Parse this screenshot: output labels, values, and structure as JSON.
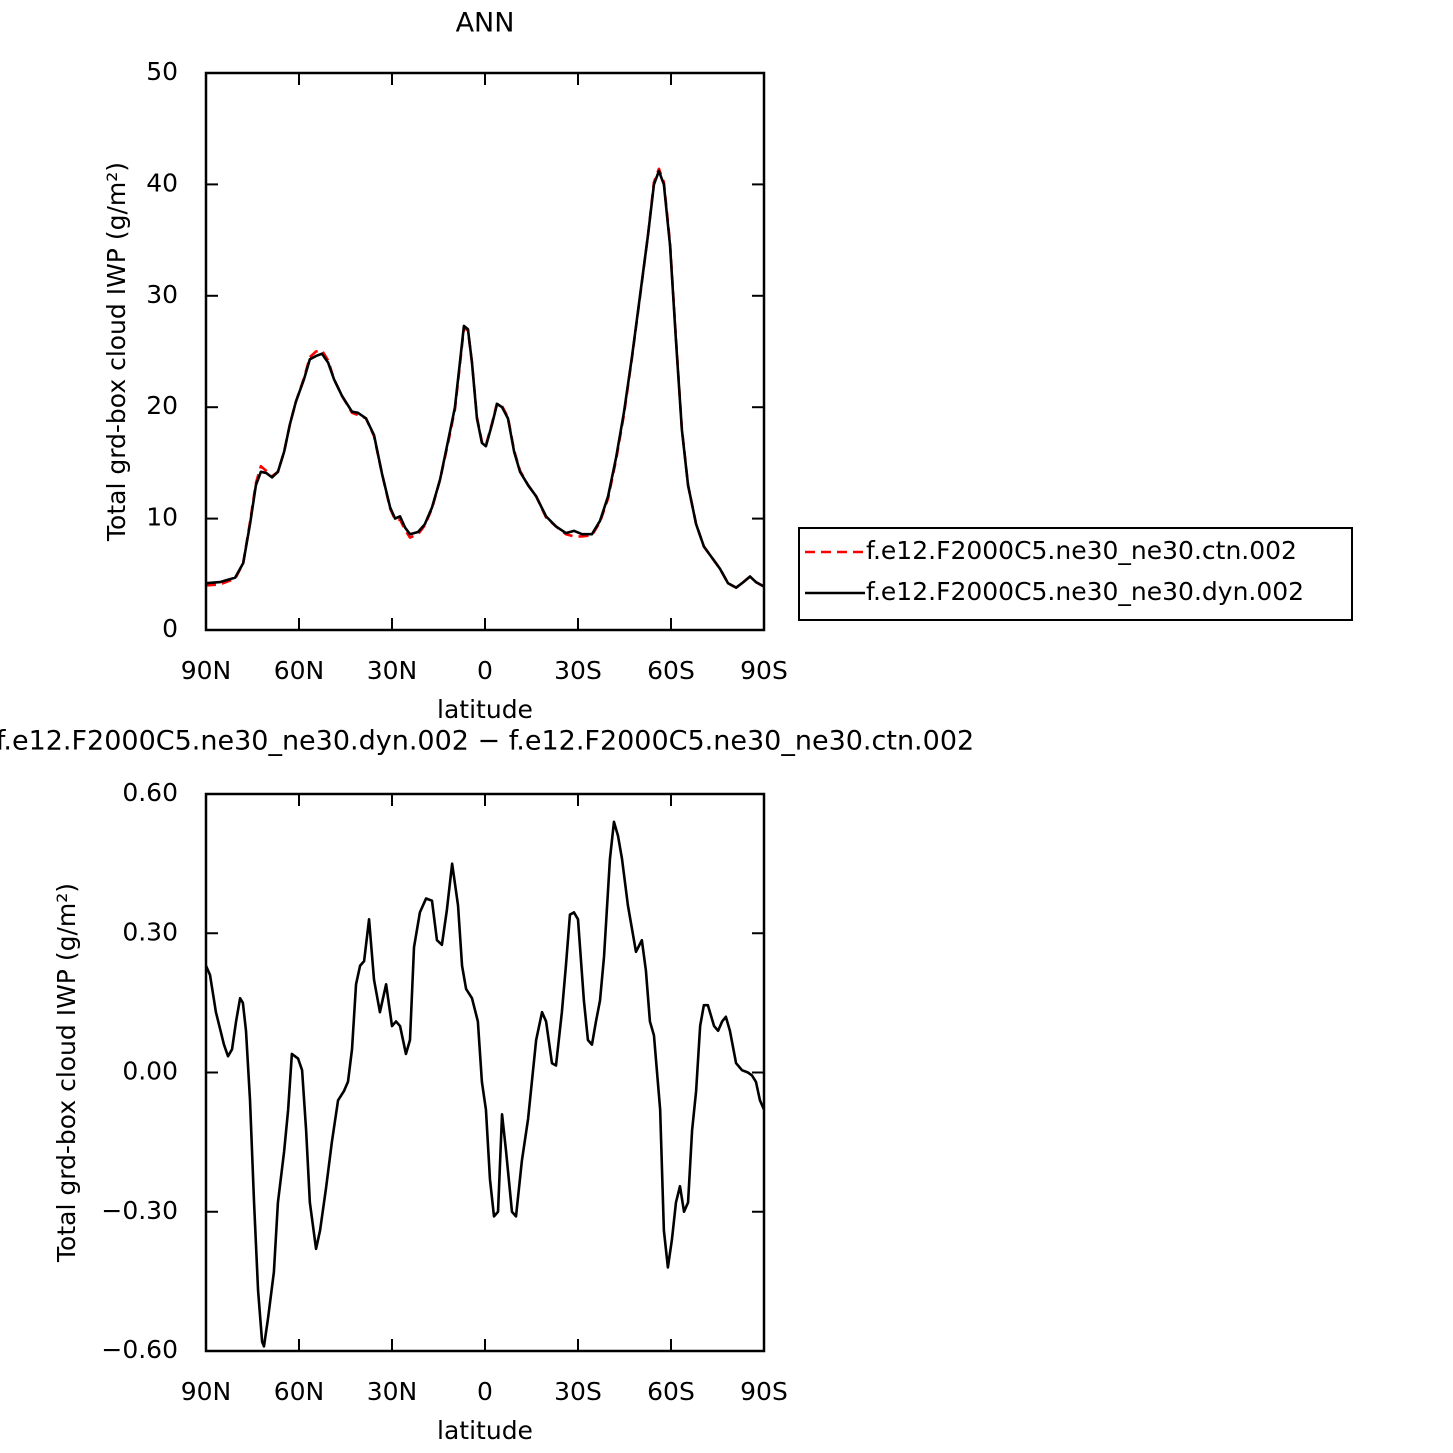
{
  "chart_data": [
    {
      "type": "line",
      "title": "ANN",
      "x_label": "latitude",
      "y_label": "Total grd-box cloud IWP (g/m²)",
      "legend": "right",
      "x": [
        90,
        85.5,
        80.6,
        78,
        75.8,
        73.9,
        72.3,
        70.6,
        68.7,
        66.8,
        64.8,
        62.9,
        61,
        58.4,
        56.5,
        54.5,
        52.6,
        50.6,
        48.7,
        46.1,
        42.9,
        41,
        38.4,
        35.8,
        33.2,
        30.6,
        29,
        27.4,
        25.8,
        24.2,
        21.6,
        19.4,
        17.1,
        14.5,
        11.9,
        9.7,
        8.1,
        6.8,
        5.5,
        4.2,
        2.6,
        1,
        -0.3,
        -2.3,
        -3.9,
        -5.5,
        -7.4,
        -9.4,
        -11.3,
        -13.9,
        -16.5,
        -19.7,
        -22.9,
        -26.1,
        -28.7,
        -31.3,
        -34.5,
        -37.1,
        -39.7,
        -42.3,
        -44.8,
        -47.4,
        -50,
        -52.6,
        -54.5,
        -56.1,
        -57.7,
        -59.7,
        -61.6,
        -63.5,
        -65.5,
        -68.1,
        -70.6,
        -73.2,
        -75.8,
        -78.4,
        -81,
        -82.9,
        -85.5,
        -87.4,
        -90
      ],
      "series": [
        {
          "name": "f.e12.F2000C5.ne30_ne30.ctn.002",
          "color": "#ff0000",
          "line_style": "dashed",
          "values": [
            4.0,
            4.1,
            4.6,
            6,
            9.7,
            13.2,
            14.7,
            14.3,
            13.8,
            14.2,
            16,
            18.5,
            20.5,
            22.6,
            24.5,
            25,
            25.1,
            24.2,
            22.5,
            21,
            19.5,
            19.3,
            19,
            17.4,
            14,
            10.9,
            9.9,
            9.9,
            9,
            8.3,
            8.6,
            9.4,
            10.9,
            13.5,
            16.8,
            19.8,
            23.8,
            27.1,
            26.9,
            24,
            19.1,
            16.9,
            16.6,
            18.6,
            20.4,
            20.1,
            19.1,
            16.1,
            14.3,
            13,
            12,
            10.1,
            9.3,
            8.6,
            8.4,
            8.4,
            8.5,
            9.7,
            11.8,
            15.3,
            19.3,
            24.4,
            29.9,
            35.5,
            40.2,
            41.4,
            40.2,
            34.7,
            26.2,
            18.1,
            13,
            9.5,
            7.5,
            6.5,
            5.5,
            4.2,
            3.8,
            4.2,
            4.8,
            4.3,
            3.9
          ]
        },
        {
          "name": "f.e12.F2000C5.ne30_ne30.dyn.002",
          "color": "#000000",
          "line_style": "solid",
          "values": [
            4.2,
            4.3,
            4.7,
            6,
            9.5,
            13,
            14.2,
            14.1,
            13.7,
            14.2,
            16,
            18.5,
            20.5,
            22.5,
            24.3,
            24.6,
            24.8,
            24,
            22.5,
            21,
            19.6,
            19.5,
            19,
            17.5,
            14,
            11,
            10,
            10.2,
            9.2,
            8.6,
            8.8,
            9.5,
            11,
            13.5,
            17,
            20,
            24,
            27.3,
            27,
            24,
            19,
            16.8,
            16.5,
            18.5,
            20.3,
            20,
            19,
            16,
            14.2,
            13,
            12,
            10.2,
            9.3,
            8.7,
            8.9,
            8.6,
            8.6,
            9.8,
            12,
            15.5,
            19.5,
            24.5,
            30,
            35.5,
            40,
            41.2,
            40,
            34.5,
            26,
            18,
            13,
            9.5,
            7.5,
            6.5,
            5.5,
            4.2,
            3.8,
            4.2,
            4.8,
            4.3,
            3.9
          ]
        }
      ],
      "xlim": [
        90,
        -90
      ],
      "xticks": [
        {
          "value": 90,
          "label": "90N"
        },
        {
          "value": 60,
          "label": "60N"
        },
        {
          "value": 30,
          "label": "30N"
        },
        0,
        {
          "value": -30,
          "label": "30S"
        },
        {
          "value": -60,
          "label": "60S"
        },
        {
          "value": -90,
          "label": "90S"
        }
      ],
      "ylim": [
        0,
        50
      ],
      "yticks": [
        0,
        10,
        20,
        30,
        40,
        50
      ]
    },
    {
      "type": "line",
      "title": "f.e12.F2000C5.ne30_ne30.dyn.002 − f.e12.F2000C5.ne30_ne30.ctn.002",
      "x_label": "latitude",
      "y_label": "Total grd-box cloud IWP (g/m²)",
      "x": [
        90,
        88.7,
        86.8,
        84.2,
        82.9,
        81.6,
        80.3,
        79,
        78.1,
        77.1,
        75.8,
        74.5,
        73.2,
        71.9,
        71.3,
        70,
        68.1,
        66.8,
        64.8,
        63.5,
        62.3,
        60.3,
        59,
        57.7,
        56.5,
        54.5,
        53.2,
        51.3,
        49.4,
        47.4,
        45.5,
        44.2,
        42.9,
        41.6,
        40.3,
        39,
        37.4,
        35.8,
        33.9,
        31.9,
        30,
        28.7,
        27.4,
        25.5,
        24.2,
        22.9,
        21,
        19,
        17.1,
        15.5,
        13.9,
        12.3,
        10.6,
        8.7,
        7.4,
        6.1,
        4.2,
        2.3,
        1,
        -0.3,
        -1.6,
        -2.9,
        -4.2,
        -5.5,
        -6.8,
        -8.7,
        -10,
        -11.9,
        -13.9,
        -16.5,
        -18.4,
        -19.7,
        -21.6,
        -22.9,
        -24.8,
        -26.1,
        -27.4,
        -28.7,
        -30,
        -31.9,
        -33.2,
        -34.5,
        -35.8,
        -37.1,
        -38.4,
        -40.3,
        -41.6,
        -42.9,
        -44.2,
        -46.1,
        -48.7,
        -50.6,
        -51.9,
        -53.2,
        -54.5,
        -56.5,
        -57.7,
        -59,
        -60.3,
        -61.6,
        -62.9,
        -64.2,
        -65.5,
        -66.8,
        -68.1,
        -69.4,
        -70.6,
        -71.9,
        -73.9,
        -75.2,
        -76.5,
        -77.7,
        -79,
        -81,
        -82.9,
        -84.8,
        -86.1,
        -87.4,
        -88.7,
        -90
      ],
      "series": [
        {
          "color": "#000000",
          "line_style": "solid",
          "values": [
            0.23,
            0.21,
            0.13,
            0.06,
            0.035,
            0.05,
            0.11,
            0.16,
            0.15,
            0.09,
            -0.06,
            -0.28,
            -0.47,
            -0.58,
            -0.59,
            -0.53,
            -0.43,
            -0.28,
            -0.17,
            -0.08,
            0.04,
            0.03,
            0.005,
            -0.125,
            -0.28,
            -0.38,
            -0.34,
            -0.25,
            -0.15,
            -0.06,
            -0.04,
            -0.02,
            0.05,
            0.19,
            0.23,
            0.24,
            0.33,
            0.2,
            0.13,
            0.19,
            0.1,
            0.11,
            0.1,
            0.04,
            0.07,
            0.27,
            0.345,
            0.375,
            0.37,
            0.285,
            0.275,
            0.35,
            0.45,
            0.36,
            0.23,
            0.18,
            0.16,
            0.11,
            -0.02,
            -0.08,
            -0.23,
            -0.31,
            -0.3,
            -0.09,
            -0.17,
            -0.3,
            -0.31,
            -0.19,
            -0.1,
            0.07,
            0.13,
            0.11,
            0.02,
            0.015,
            0.13,
            0.23,
            0.34,
            0.345,
            0.33,
            0.155,
            0.07,
            0.06,
            0.11,
            0.155,
            0.25,
            0.46,
            0.54,
            0.51,
            0.46,
            0.36,
            0.26,
            0.285,
            0.22,
            0.11,
            0.08,
            -0.08,
            -0.34,
            -0.42,
            -0.36,
            -0.28,
            -0.245,
            -0.3,
            -0.28,
            -0.125,
            -0.04,
            0.1,
            0.145,
            0.145,
            0.1,
            0.09,
            0.11,
            0.12,
            0.09,
            0.02,
            0.005,
            0,
            -0.006,
            -0.02,
            -0.06,
            -0.08
          ]
        }
      ],
      "xlim": [
        90,
        -90
      ],
      "xticks": [
        {
          "value": 90,
          "label": "90N"
        },
        {
          "value": 60,
          "label": "60N"
        },
        {
          "value": 30,
          "label": "30N"
        },
        0,
        {
          "value": -30,
          "label": "30S"
        },
        {
          "value": -60,
          "label": "60S"
        },
        {
          "value": -90,
          "label": "90S"
        }
      ],
      "ylim": [
        -0.6,
        0.6
      ],
      "yticks": [
        {
          "value": -0.6,
          "label": "−0.60"
        },
        {
          "value": -0.3,
          "label": "−0.30"
        },
        {
          "value": 0,
          "label": "0.00"
        },
        {
          "value": 0.3,
          "label": "0.30"
        },
        {
          "value": 0.6,
          "label": "0.60"
        }
      ]
    }
  ]
}
